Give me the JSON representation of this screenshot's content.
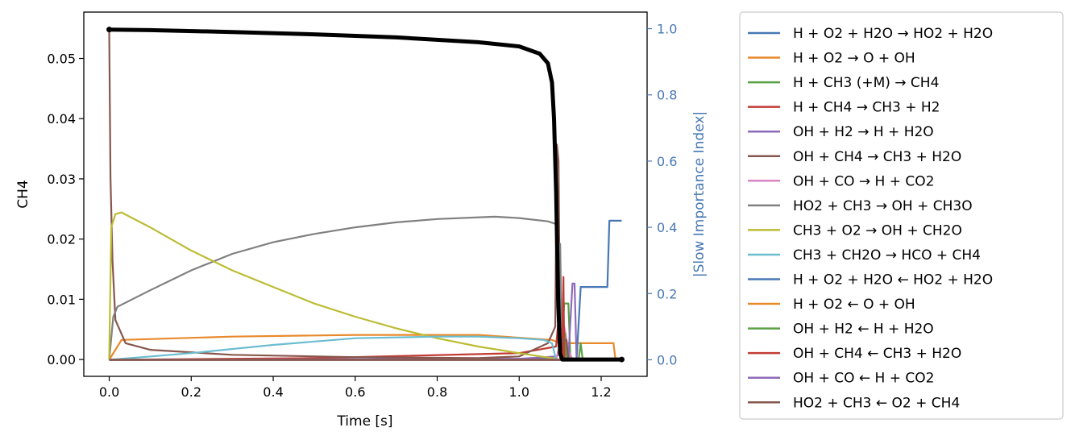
{
  "chart_data": {
    "type": "line",
    "title": "",
    "xlabel": "Time [s]",
    "ylabel_left": "CH4",
    "ylabel_right": "|Slow Importance Index|",
    "xlim": [
      -0.062,
      1.312
    ],
    "ylim_left": [
      -0.0028,
      0.0577
    ],
    "ylim_right": [
      -0.05,
      1.05
    ],
    "x_ticks": [
      "0.0",
      "0.2",
      "0.4",
      "0.6",
      "0.8",
      "1.0",
      "1.2"
    ],
    "y_left_ticks": [
      "0.00",
      "0.01",
      "0.02",
      "0.03",
      "0.04",
      "0.05"
    ],
    "y_right_ticks": [
      "0.0",
      "0.2",
      "0.4",
      "0.6",
      "0.8",
      "1.0"
    ],
    "grid": false,
    "legend_position": "outside-right",
    "left_series": {
      "name": "CH4",
      "color": "#000000",
      "points": [
        [
          0.0,
          0.0548
        ],
        [
          0.1,
          0.0547
        ],
        [
          0.3,
          0.0544
        ],
        [
          0.5,
          0.054
        ],
        [
          0.7,
          0.0535
        ],
        [
          0.9,
          0.0527
        ],
        [
          1.0,
          0.052
        ],
        [
          1.05,
          0.0508
        ],
        [
          1.07,
          0.0492
        ],
        [
          1.08,
          0.046
        ],
        [
          1.085,
          0.04
        ],
        [
          1.09,
          0.028
        ],
        [
          1.095,
          0.01
        ],
        [
          1.1,
          0.001
        ],
        [
          1.105,
          0.0
        ],
        [
          1.25,
          0.0
        ]
      ]
    },
    "series": [
      {
        "name": "H + O2 + H2O  →  HO2 + H2O",
        "color": "#4878b4",
        "values": [
          [
            0.0,
            0.0
          ],
          [
            1.0,
            0.002
          ],
          [
            1.08,
            0.004
          ],
          [
            1.09,
            0.0
          ],
          [
            1.25,
            0.0
          ]
        ]
      },
      {
        "name": "H + O2  →  O + OH",
        "color": "#e8892c",
        "values": [
          [
            0.0,
            0.0
          ],
          [
            0.03,
            0.06
          ],
          [
            0.3,
            0.07
          ],
          [
            0.6,
            0.075
          ],
          [
            0.9,
            0.075
          ],
          [
            1.08,
            0.06
          ],
          [
            1.1,
            0.05
          ],
          [
            1.12,
            0.05
          ],
          [
            1.15,
            0.05
          ],
          [
            1.23,
            0.05
          ],
          [
            1.235,
            0.0
          ],
          [
            1.25,
            0.0
          ]
        ]
      },
      {
        "name": "H + CH3 (+M)   →  CH4",
        "color": "#5aa045",
        "values": [
          [
            0.0,
            0.0
          ],
          [
            1.1,
            0.0
          ],
          [
            1.11,
            0.17
          ],
          [
            1.12,
            0.17
          ],
          [
            1.125,
            0.0
          ],
          [
            1.145,
            0.0
          ],
          [
            1.15,
            0.05
          ],
          [
            1.155,
            0.0
          ],
          [
            1.25,
            0.0
          ]
        ]
      },
      {
        "name": "H + CH4  →  CH3 + H2",
        "color": "#c23b35",
        "values": [
          [
            0.0,
            0.0
          ],
          [
            0.5,
            0.005
          ],
          [
            1.0,
            0.02
          ],
          [
            1.09,
            0.04
          ],
          [
            1.1,
            0.18
          ],
          [
            1.105,
            0.0
          ],
          [
            1.25,
            0.0
          ]
        ]
      },
      {
        "name": "OH + H2  →  H + H2O",
        "color": "#8e6bb8",
        "values": [
          [
            0.0,
            0.0
          ],
          [
            1.0,
            0.003
          ],
          [
            1.09,
            0.01
          ],
          [
            1.1,
            0.02
          ],
          [
            1.105,
            0.0
          ],
          [
            1.25,
            0.0
          ]
        ]
      },
      {
        "name": "OH + CH4  →  CH3 + H2O",
        "color": "#86574d",
        "values": [
          [
            0.0,
            1.0
          ],
          [
            0.003,
            0.55
          ],
          [
            0.008,
            0.3
          ],
          [
            0.015,
            0.12
          ],
          [
            0.04,
            0.05
          ],
          [
            0.1,
            0.03
          ],
          [
            0.3,
            0.015
          ],
          [
            0.6,
            0.008
          ],
          [
            0.9,
            0.005
          ],
          [
            1.0,
            0.01
          ],
          [
            1.07,
            0.05
          ],
          [
            1.088,
            0.1
          ],
          [
            1.092,
            0.65
          ],
          [
            1.096,
            0.6
          ],
          [
            1.1,
            0.02
          ],
          [
            1.105,
            0.0
          ],
          [
            1.25,
            0.0
          ]
        ]
      },
      {
        "name": "OH + CO  →  H + CO2",
        "color": "#da85c4",
        "values": [
          [
            0.0,
            0.0
          ],
          [
            1.09,
            0.0
          ],
          [
            1.1,
            0.05
          ],
          [
            1.11,
            0.1
          ],
          [
            1.12,
            0.03
          ],
          [
            1.13,
            0.0
          ],
          [
            1.25,
            0.0
          ]
        ]
      },
      {
        "name": "HO2 + CH3  →  OH + CH3O",
        "color": "#808080",
        "values": [
          [
            0.0,
            0.0
          ],
          [
            0.01,
            0.13
          ],
          [
            0.02,
            0.16
          ],
          [
            0.1,
            0.21
          ],
          [
            0.2,
            0.27
          ],
          [
            0.3,
            0.32
          ],
          [
            0.4,
            0.355
          ],
          [
            0.5,
            0.38
          ],
          [
            0.6,
            0.4
          ],
          [
            0.7,
            0.415
          ],
          [
            0.8,
            0.425
          ],
          [
            0.94,
            0.432
          ],
          [
            1.0,
            0.428
          ],
          [
            1.07,
            0.418
          ],
          [
            1.09,
            0.41
          ],
          [
            1.09,
            0.29
          ],
          [
            1.1,
            0.35
          ],
          [
            1.105,
            0.0
          ],
          [
            1.25,
            0.0
          ]
        ]
      },
      {
        "name": "CH3 + O2  →  OH + CH2O",
        "color": "#bcbc35",
        "values": [
          [
            0.0,
            0.0
          ],
          [
            0.005,
            0.4
          ],
          [
            0.015,
            0.44
          ],
          [
            0.03,
            0.445
          ],
          [
            0.1,
            0.4
          ],
          [
            0.2,
            0.33
          ],
          [
            0.3,
            0.27
          ],
          [
            0.4,
            0.22
          ],
          [
            0.5,
            0.17
          ],
          [
            0.6,
            0.13
          ],
          [
            0.7,
            0.095
          ],
          [
            0.8,
            0.065
          ],
          [
            0.9,
            0.04
          ],
          [
            1.0,
            0.02
          ],
          [
            1.08,
            0.005
          ],
          [
            1.1,
            0.0
          ],
          [
            1.25,
            0.0
          ]
        ]
      },
      {
        "name": "CH3 + CH2O  →  HCO + CH4",
        "color": "#6cbdd0",
        "values": [
          [
            0.0,
            0.0
          ],
          [
            0.2,
            0.02
          ],
          [
            0.4,
            0.045
          ],
          [
            0.6,
            0.065
          ],
          [
            0.8,
            0.07
          ],
          [
            0.9,
            0.07
          ],
          [
            1.0,
            0.065
          ],
          [
            1.06,
            0.06
          ],
          [
            1.08,
            0.05
          ],
          [
            1.09,
            0.0
          ],
          [
            1.25,
            0.0
          ]
        ]
      },
      {
        "name": "H + O2 + H2O  ←  HO2 + H2O",
        "color": "#4878b4",
        "values": [
          [
            0.0,
            0.0
          ],
          [
            1.14,
            0.0
          ],
          [
            1.15,
            0.22
          ],
          [
            1.215,
            0.22
          ],
          [
            1.22,
            0.42
          ],
          [
            1.25,
            0.42
          ]
        ]
      },
      {
        "name": "H + O2  ←  O + OH",
        "color": "#e8892c",
        "values": [
          [
            0.0,
            0.0
          ],
          [
            1.25,
            0.0
          ]
        ]
      },
      {
        "name": "OH + H2  ←  H + H2O",
        "color": "#5aa045",
        "values": [
          [
            0.0,
            0.0
          ],
          [
            1.11,
            0.0
          ],
          [
            1.112,
            0.08
          ],
          [
            1.115,
            0.0
          ],
          [
            1.25,
            0.0
          ]
        ]
      },
      {
        "name": "OH + CH4  ←  CH3 + H2O",
        "color": "#c23b35",
        "values": [
          [
            0.0,
            0.0
          ],
          [
            1.105,
            0.0
          ],
          [
            1.108,
            0.25
          ],
          [
            1.11,
            0.0
          ],
          [
            1.25,
            0.0
          ]
        ]
      },
      {
        "name": "OH + CO  ←  H + CO2",
        "color": "#8e6bb8",
        "values": [
          [
            0.0,
            0.0
          ],
          [
            1.12,
            0.0
          ],
          [
            1.125,
            0.12
          ],
          [
            1.13,
            0.23
          ],
          [
            1.135,
            0.23
          ],
          [
            1.14,
            0.0
          ],
          [
            1.25,
            0.0
          ]
        ]
      },
      {
        "name": "HO2 + CH3  ←  O2 + CH4",
        "color": "#86574d",
        "values": [
          [
            0.0,
            0.0
          ],
          [
            1.1,
            0.0
          ],
          [
            1.105,
            0.06
          ],
          [
            1.115,
            0.06
          ],
          [
            1.12,
            0.0
          ],
          [
            1.25,
            0.0
          ]
        ]
      }
    ]
  }
}
